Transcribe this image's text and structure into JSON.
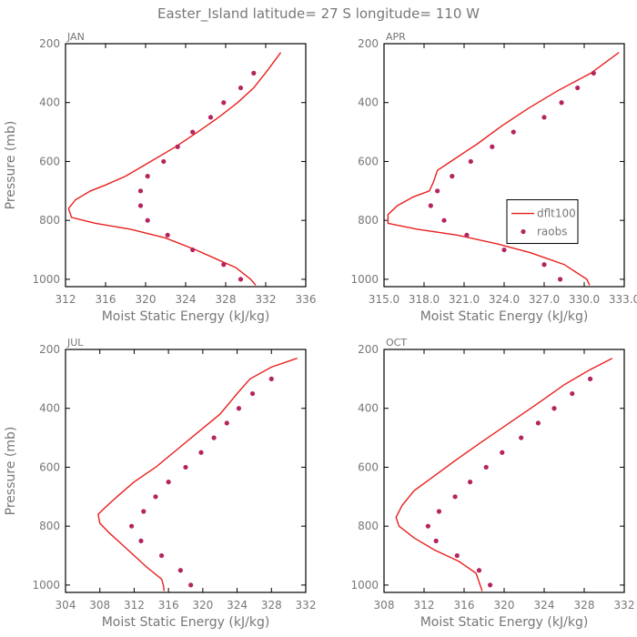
{
  "figure": {
    "title": "Easter_Island   latitude= 27 S longitude= 110 W"
  },
  "colors": {
    "model": "#e8201e",
    "observations": "#b5245f",
    "axis_text": "#777777"
  },
  "chart_data": [
    {
      "type": "line",
      "panel": "JAN",
      "xlabel": "Moist Static Energy (kJ/kg)",
      "ylabel": "Pressure (mb)",
      "xlim": [
        312,
        336
      ],
      "xticks": [
        312,
        316,
        320,
        324,
        328,
        332,
        336
      ],
      "xtick_labels": [
        "312",
        "316",
        "320",
        "324",
        "328",
        "332",
        "336"
      ],
      "ylim": [
        1025,
        200
      ],
      "yticks": [
        200,
        400,
        600,
        800,
        1000
      ],
      "ytick_labels": [
        "200",
        "400",
        "600",
        "800",
        "1000"
      ],
      "series": [
        {
          "name": "dflt100",
          "style": "line",
          "x": [
            333.5,
            332.2,
            330.8,
            329.2,
            327.3,
            325.2,
            323.0,
            320.5,
            318.0,
            316.0,
            314.5,
            313.0,
            312.3,
            312.6,
            315.0,
            318.5,
            322.0,
            325.0,
            327.0,
            329.0,
            330.5,
            331.0
          ],
          "y": [
            230,
            290,
            350,
            400,
            450,
            500,
            550,
            600,
            650,
            680,
            700,
            730,
            760,
            790,
            810,
            830,
            860,
            900,
            930,
            960,
            1000,
            1020
          ]
        },
        {
          "name": "raobs",
          "style": "markers",
          "x": [
            330.8,
            329.5,
            327.8,
            326.5,
            324.7,
            323.2,
            321.8,
            320.2,
            319.5,
            319.5,
            320.2,
            322.2,
            324.7,
            327.8,
            329.5
          ],
          "y": [
            300,
            350,
            400,
            450,
            500,
            550,
            600,
            650,
            700,
            750,
            800,
            850,
            900,
            950,
            1000
          ]
        }
      ]
    },
    {
      "type": "line",
      "panel": "APR",
      "xlabel": "Moist Static Energy (kJ/kg)",
      "ylabel": "",
      "xlim": [
        315,
        333
      ],
      "xticks": [
        315,
        318,
        321,
        324,
        327,
        330,
        333
      ],
      "xtick_labels": [
        "315.0",
        "318.0",
        "321.0",
        "324.0",
        "327.0",
        "330.0",
        "333.0"
      ],
      "ylim": [
        1025,
        200
      ],
      "yticks": [
        200,
        400,
        600,
        800,
        1000
      ],
      "ytick_labels": [
        "200",
        "400",
        "600",
        "800",
        "1000"
      ],
      "legend": {
        "position": "right-middle",
        "entries": [
          "dflt100",
          "raobs"
        ]
      },
      "series": [
        {
          "name": "dflt100",
          "style": "line",
          "x": [
            332.6,
            330.5,
            328.0,
            325.8,
            323.8,
            322.0,
            321.0,
            320.0,
            319.0,
            318.7,
            318.4,
            317.2,
            316.0,
            315.3,
            315.3,
            317.5,
            320.5,
            323.5,
            326.0,
            328.5,
            330.2,
            330.4
          ],
          "y": [
            230,
            300,
            360,
            420,
            480,
            540,
            570,
            600,
            630,
            670,
            700,
            720,
            750,
            780,
            810,
            830,
            850,
            880,
            910,
            950,
            1000,
            1020
          ]
        },
        {
          "name": "raobs",
          "style": "markers",
          "x": [
            330.7,
            329.5,
            328.3,
            327.0,
            324.7,
            323.1,
            321.5,
            320.1,
            319.0,
            318.5,
            319.5,
            321.2,
            324.0,
            327.0,
            328.2
          ],
          "y": [
            300,
            350,
            400,
            450,
            500,
            550,
            600,
            650,
            700,
            750,
            800,
            850,
            900,
            950,
            1000
          ]
        }
      ]
    },
    {
      "type": "line",
      "panel": "JUL",
      "xlabel": "Moist Static Energy (kJ/kg)",
      "ylabel": "Pressure (mb)",
      "xlim": [
        304,
        332
      ],
      "xticks": [
        304,
        308,
        312,
        316,
        320,
        324,
        328,
        332
      ],
      "xtick_labels": [
        "304",
        "308",
        "312",
        "316",
        "320",
        "324",
        "328",
        "332"
      ],
      "ylim": [
        1025,
        200
      ],
      "yticks": [
        200,
        400,
        600,
        800,
        1000
      ],
      "ytick_labels": [
        "200",
        "400",
        "600",
        "800",
        "1000"
      ],
      "series": [
        {
          "name": "dflt100",
          "style": "line",
          "x": [
            331.0,
            328.0,
            325.5,
            324.0,
            322.0,
            319.5,
            317.0,
            314.5,
            312.0,
            310.0,
            308.5,
            307.8,
            308.0,
            309.0,
            310.5,
            312.0,
            313.5,
            315.2,
            315.4,
            315.5
          ],
          "y": [
            230,
            260,
            300,
            350,
            420,
            480,
            540,
            600,
            650,
            700,
            740,
            760,
            790,
            820,
            860,
            900,
            940,
            980,
            1000,
            1020
          ]
        },
        {
          "name": "raobs",
          "style": "markers",
          "x": [
            328.0,
            325.8,
            324.2,
            322.8,
            321.3,
            319.8,
            318.0,
            316.0,
            314.5,
            313.1,
            311.7,
            312.8,
            315.2,
            317.4,
            318.6
          ],
          "y": [
            300,
            350,
            400,
            450,
            500,
            550,
            600,
            650,
            700,
            750,
            800,
            850,
            900,
            950,
            1000
          ]
        }
      ]
    },
    {
      "type": "line",
      "panel": "OCT",
      "xlabel": "Moist Static Energy (kJ/kg)",
      "ylabel": "",
      "xlim": [
        308,
        332
      ],
      "xticks": [
        308,
        312,
        316,
        320,
        324,
        328,
        332
      ],
      "xtick_labels": [
        "308",
        "312",
        "316",
        "320",
        "324",
        "328",
        "332"
      ],
      "ylim": [
        1025,
        200
      ],
      "yticks": [
        200,
        400,
        600,
        800,
        1000
      ],
      "ytick_labels": [
        "200",
        "400",
        "600",
        "800",
        "1000"
      ],
      "series": [
        {
          "name": "dflt100",
          "style": "line",
          "x": [
            330.8,
            328.5,
            326.0,
            323.5,
            320.5,
            317.5,
            315.0,
            313.0,
            311.0,
            309.8,
            309.2,
            309.5,
            311.0,
            313.0,
            315.5,
            317.2,
            317.6,
            317.8
          ],
          "y": [
            230,
            270,
            320,
            380,
            450,
            520,
            580,
            630,
            680,
            730,
            770,
            800,
            840,
            880,
            920,
            960,
            1000,
            1020
          ]
        },
        {
          "name": "raobs",
          "style": "markers",
          "x": [
            328.6,
            326.8,
            325.0,
            323.4,
            321.7,
            319.8,
            318.2,
            316.6,
            315.1,
            313.5,
            312.4,
            313.2,
            315.3,
            317.5,
            318.6
          ],
          "y": [
            300,
            350,
            400,
            450,
            500,
            550,
            600,
            650,
            700,
            750,
            800,
            850,
            900,
            950,
            1000
          ]
        }
      ]
    }
  ]
}
